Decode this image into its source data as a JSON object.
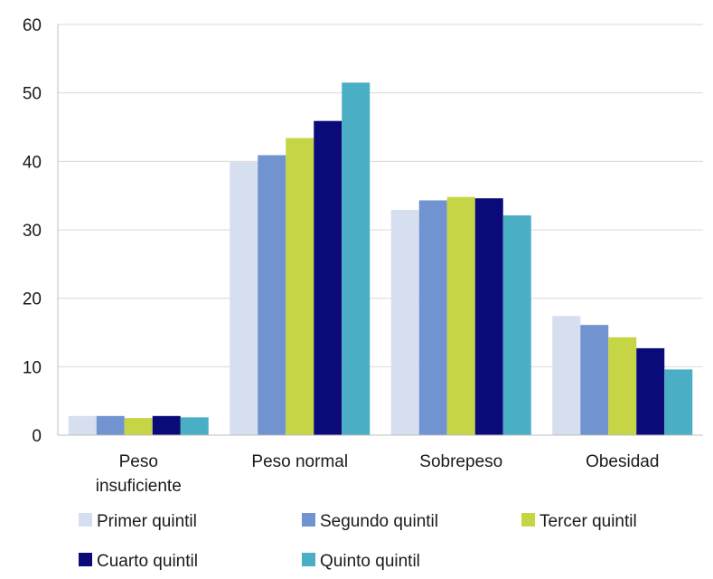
{
  "chart_data": {
    "type": "bar",
    "categories": [
      [
        "Peso",
        "insuficiente"
      ],
      [
        "Peso normal"
      ],
      [
        "Sobrepeso"
      ],
      [
        "Obesidad"
      ]
    ],
    "series": [
      {
        "name": "Primer quintil",
        "color": "#d6dfef",
        "values": [
          2.8,
          39.9,
          32.9,
          17.4
        ]
      },
      {
        "name": "Segundo quintil",
        "color": "#7193cf",
        "values": [
          2.8,
          40.9,
          34.3,
          16.1
        ]
      },
      {
        "name": "Tercer quintil",
        "color": "#c6d545",
        "values": [
          2.5,
          43.4,
          34.8,
          14.3
        ]
      },
      {
        "name": "Cuarto quintil",
        "color": "#0a0a78",
        "values": [
          2.8,
          45.9,
          34.6,
          12.7
        ]
      },
      {
        "name": "Quinto quintil",
        "color": "#4aaec4",
        "values": [
          2.6,
          51.5,
          32.1,
          9.6
        ]
      }
    ],
    "ylim": [
      0,
      60
    ],
    "yticks": [
      0,
      10,
      20,
      30,
      40,
      50,
      60
    ],
    "grid": true,
    "legend": "bottom"
  }
}
